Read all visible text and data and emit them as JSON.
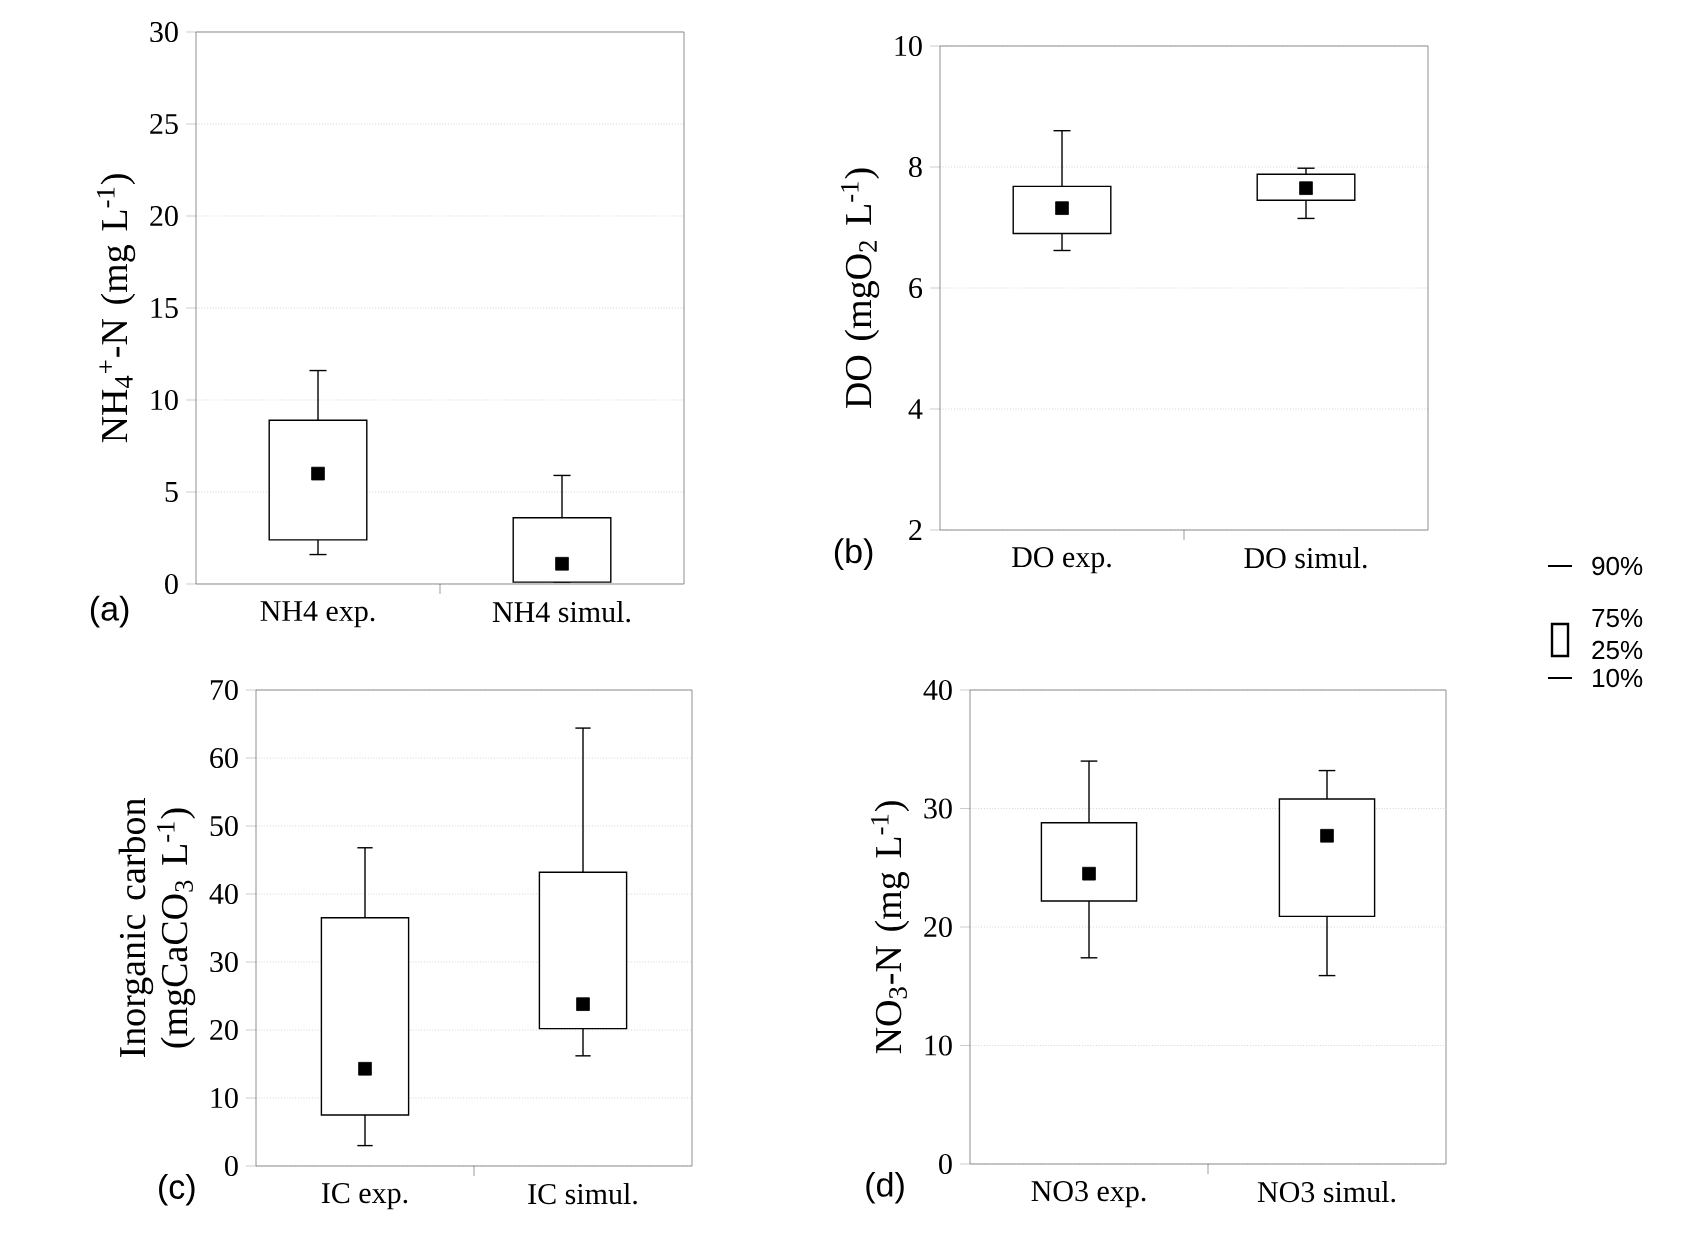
{
  "chart_data": [
    {
      "type": "box",
      "ylabel": "NH$_{4}$$^{+}$-N (mg L$^{-1}$)",
      "categories": [
        "NH4 exp.",
        "NH4 simul."
      ],
      "ylim": [
        0,
        30
      ],
      "yticks": [
        0,
        5,
        10,
        15,
        20,
        25,
        30
      ],
      "grid": "y",
      "annotations": [
        "(a)"
      ],
      "boxes": [
        {
          "low": 1.6,
          "q1": 2.4,
          "median": 6.0,
          "q3": 8.9,
          "high": 11.6
        },
        {
          "low": 0.1,
          "q1": 0.1,
          "median": 1.1,
          "q3": 3.6,
          "high": 5.9
        }
      ]
    },
    {
      "type": "box",
      "ylabel": "DO (mgO$_{2}$ L$^{-1}$)",
      "categories": [
        "DO exp.",
        "DO simul."
      ],
      "ylim": [
        2,
        10
      ],
      "yticks": [
        2,
        4,
        6,
        8,
        10
      ],
      "grid": "y",
      "annotations": [
        "(b)"
      ],
      "boxes": [
        {
          "low": 6.62,
          "q1": 6.9,
          "median": 7.32,
          "q3": 7.68,
          "high": 8.6
        },
        {
          "low": 7.15,
          "q1": 7.45,
          "median": 7.65,
          "q3": 7.88,
          "high": 7.98
        }
      ]
    },
    {
      "type": "box",
      "ylabel": "Inorganic carbon (mgCaCO$_{3}$ L$^{-1}$)",
      "categories": [
        "IC exp.",
        "IC simul."
      ],
      "ylim": [
        0,
        70
      ],
      "yticks": [
        0,
        10,
        20,
        30,
        40,
        50,
        60,
        70
      ],
      "grid": "y",
      "annotations": [
        "(c)"
      ],
      "boxes": [
        {
          "low": 3.0,
          "q1": 7.5,
          "median": 14.3,
          "q3": 36.5,
          "high": 46.8
        },
        {
          "low": 16.2,
          "q1": 20.2,
          "median": 23.8,
          "q3": 43.2,
          "high": 64.4
        }
      ]
    },
    {
      "type": "box",
      "ylabel": "NO$_{3}$-N (mg L$^{-1}$)",
      "categories": [
        "NO3 exp.",
        "NO3 simul."
      ],
      "ylim": [
        0,
        40
      ],
      "yticks": [
        0,
        10,
        20,
        30,
        40
      ],
      "grid": "y",
      "annotations": [
        "(d)"
      ],
      "boxes": [
        {
          "low": 17.4,
          "q1": 22.2,
          "median": 24.5,
          "q3": 28.8,
          "high": 34.0
        },
        {
          "low": 15.9,
          "q1": 20.9,
          "median": 27.7,
          "q3": 30.8,
          "high": 33.2
        }
      ]
    },
    {
      "type": "other",
      "annotations": [
        "90%",
        "75%",
        "25%",
        "10%"
      ]
    }
  ]
}
